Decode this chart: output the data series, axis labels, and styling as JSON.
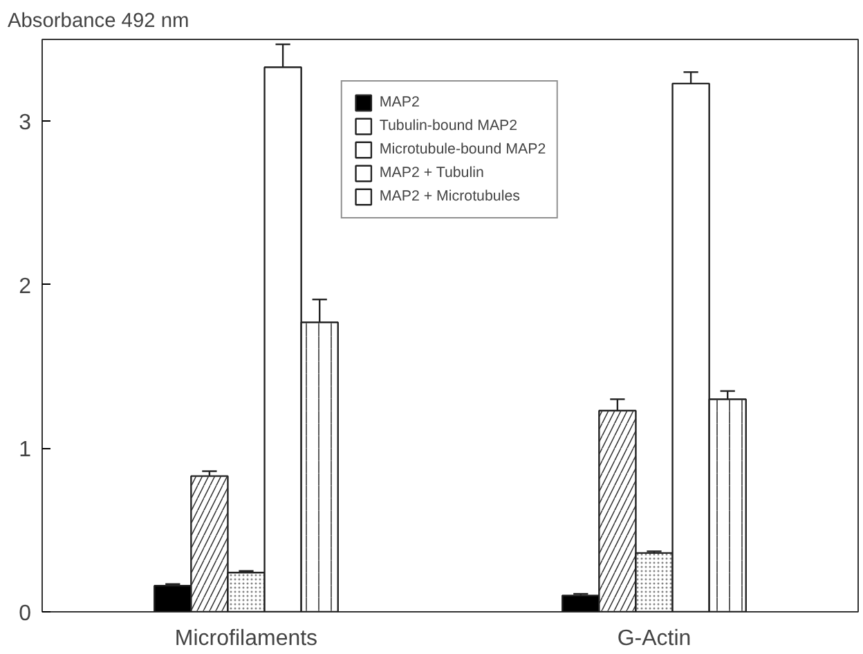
{
  "chart_data": {
    "type": "bar",
    "ylabel": "Absorbance 492 nm",
    "categories": [
      "Microfilaments",
      "G-Actin"
    ],
    "series": [
      {
        "name": "MAP2",
        "color": "#000000",
        "values": [
          0.16,
          0.1
        ],
        "errors": [
          [
            0.16,
            0.17
          ],
          [
            0.1,
            0.11
          ]
        ]
      },
      {
        "name": "Tubulin-bound MAP2",
        "color": "#ffffff",
        "values": [
          0.83,
          1.23
        ],
        "errors": [
          [
            0.83,
            0.86
          ],
          [
            1.23,
            1.3
          ]
        ]
      },
      {
        "name": "Microtubule-bound MAP2",
        "color": "#ffffff",
        "values": [
          0.24,
          0.36
        ],
        "errors": [
          [
            0.24,
            0.25
          ],
          [
            0.36,
            0.37
          ]
        ]
      },
      {
        "name": "MAP2 + Tubulin",
        "color": "#ffffff",
        "values": [
          3.33,
          3.23
        ],
        "errors": [
          [
            3.33,
            3.47
          ],
          [
            3.23,
            3.3
          ]
        ]
      },
      {
        "name": "MAP2 + Microtubules",
        "color": "#ffffff",
        "values": [
          1.77,
          1.3
        ],
        "errors": [
          [
            1.77,
            1.91
          ],
          [
            1.3,
            1.35
          ]
        ]
      }
    ],
    "ylim": [
      0,
      3.5
    ],
    "yticks": [
      0,
      1,
      2,
      3
    ],
    "grid": false,
    "legend": "top"
  }
}
